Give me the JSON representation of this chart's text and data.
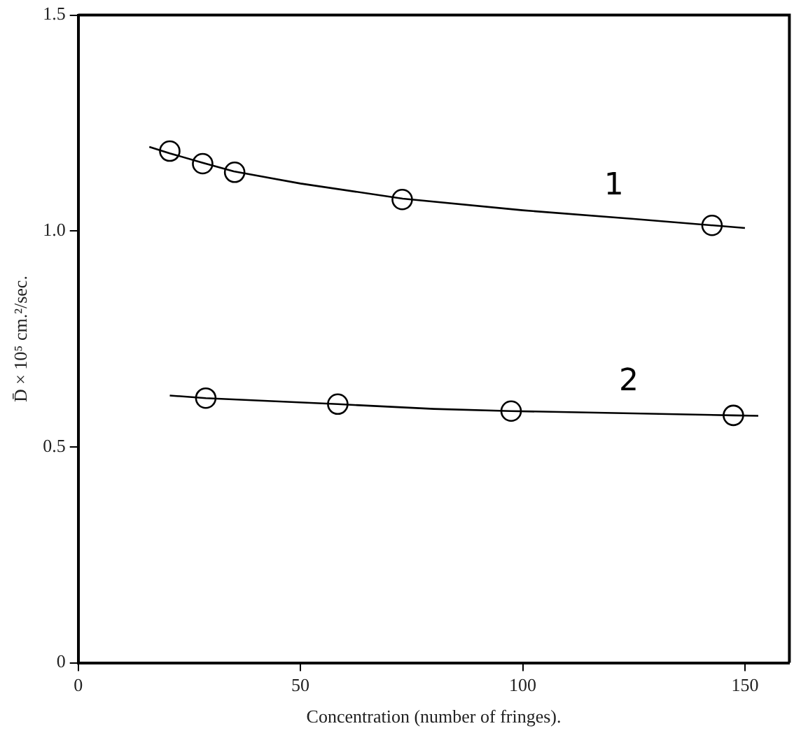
{
  "chart_data": {
    "type": "scatter",
    "xlabel": "Concentration (number of fringes).",
    "ylabel": "D̄ × 10⁵ cm.²/sec.",
    "xlim": [
      0,
      160
    ],
    "xticks": [
      0,
      50,
      100,
      150
    ],
    "ylim": [
      0,
      1.5
    ],
    "yticks": [
      {
        "value": 0,
        "label": "0"
      },
      {
        "value": 0.5,
        "label": "0.5"
      },
      {
        "value": 1.0,
        "label": "1.0"
      },
      {
        "value": 1.5,
        "label": "1.5"
      }
    ],
    "grid": false,
    "legend": false,
    "series": [
      {
        "color": "#000000",
        "marker": "circle",
        "x": [
          20.6,
          28,
          35.2,
          72.9,
          142.6
        ],
        "values": [
          1.185,
          1.156,
          1.136,
          1.073,
          1.013
        ]
      },
      {
        "color": "#000000",
        "marker": "circle",
        "x": [
          28.7,
          58.4,
          97.4,
          147.4
        ],
        "values": [
          0.613,
          0.599,
          0.583,
          0.573
        ]
      },
      {
        "type": "line",
        "name": "1",
        "color": "#000000",
        "marker": "none",
        "x": [
          16,
          20.6,
          28,
          35,
          50,
          73,
          100,
          125,
          150
        ],
        "values": [
          1.195,
          1.18,
          1.158,
          1.138,
          1.11,
          1.075,
          1.048,
          1.028,
          1.007
        ]
      },
      {
        "type": "line",
        "name": "2",
        "color": "#000000",
        "marker": "none",
        "x": [
          20.6,
          28.7,
          58.4,
          80,
          97.4,
          147.4,
          153
        ],
        "values": [
          0.619,
          0.613,
          0.599,
          0.588,
          0.583,
          0.573,
          0.572
        ]
      }
    ]
  }
}
